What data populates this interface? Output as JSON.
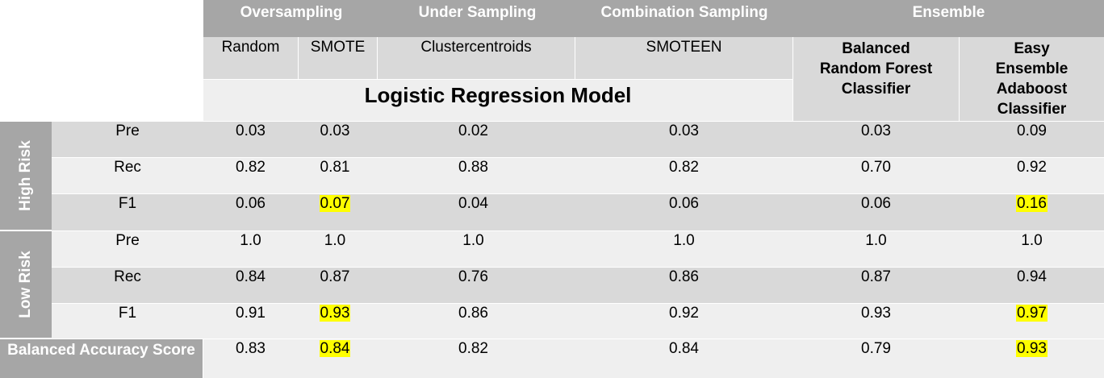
{
  "groups": [
    "Oversampling",
    "Under Sampling",
    "Combination Sampling",
    "Ensemble"
  ],
  "methods": [
    "Random",
    "SMOTE",
    "Clustercentroids",
    "SMOTEEN"
  ],
  "ensemble_methods": [
    [
      "Balanced",
      "Random Forest",
      "Classifier"
    ],
    [
      "Easy",
      "Ensemble",
      "Adaboost",
      "Classifier"
    ]
  ],
  "model_label": "Logistic Regression Model",
  "risk_labels": [
    "High Risk",
    "Low Risk"
  ],
  "metrics": [
    "Pre",
    "Rec",
    "F1",
    "Pre",
    "Rec",
    "F1"
  ],
  "rows": [
    [
      "0.03",
      "0.03",
      "0.02",
      "0.03",
      "0.03",
      "0.09"
    ],
    [
      "0.82",
      "0.81",
      "0.88",
      "0.82",
      "0.70",
      "0.92"
    ],
    [
      "0.06",
      "0.07",
      "0.04",
      "0.06",
      "0.06",
      "0.16"
    ],
    [
      "1.0",
      "1.0",
      "1.0",
      "1.0",
      "1.0",
      "1.0"
    ],
    [
      "0.84",
      "0.87",
      "0.76",
      "0.86",
      "0.87",
      "0.94"
    ],
    [
      "0.91",
      "0.93",
      "0.86",
      "0.92",
      "0.93",
      "0.97"
    ]
  ],
  "highlights": [
    [
      2,
      1
    ],
    [
      2,
      5
    ],
    [
      5,
      1
    ],
    [
      5,
      5
    ],
    [
      6,
      1
    ],
    [
      6,
      5
    ]
  ],
  "highlight_color": "#ffff00",
  "balanced_accuracy": {
    "label": "Balanced Accuracy Score",
    "values": [
      "0.83",
      "0.84",
      "0.82",
      "0.84",
      "0.79",
      "0.93"
    ]
  }
}
